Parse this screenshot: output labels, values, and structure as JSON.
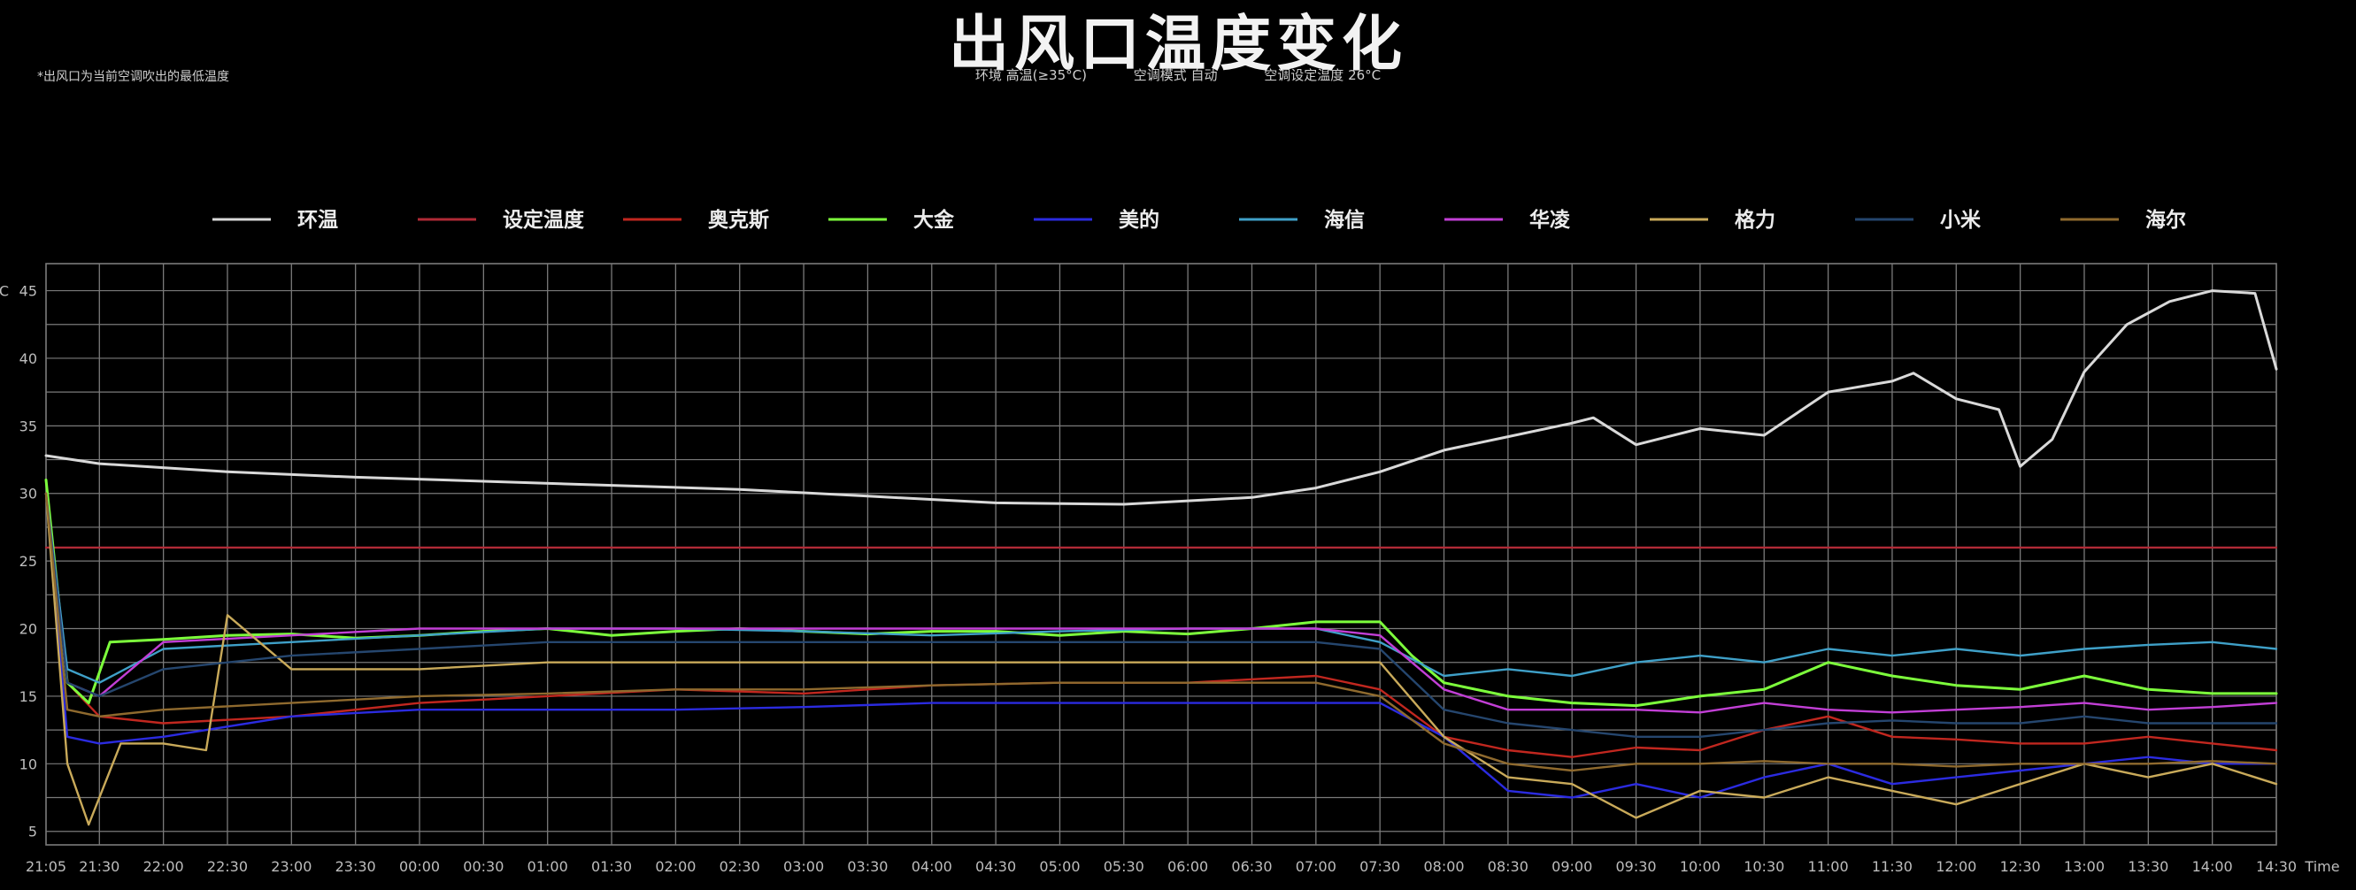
{
  "header": {
    "title": "出风口温度变化",
    "footnote": "*出风口为当前空调吹出的最低温度",
    "conditions": [
      "环境 高温(≥35°C)",
      "空调模式 自动",
      "空调设定温度 26°C"
    ]
  },
  "colors": {
    "background": "#000000",
    "grid": "#7a7a7a"
  },
  "chart_data": {
    "type": "line",
    "title": "出风口温度变化",
    "xlabel": "Time",
    "ylabel": "°C",
    "ylim": [
      4,
      47
    ],
    "xlim_minutes": [
      0,
      1045
    ],
    "grid": true,
    "legend_position": "top",
    "y_ticks": [
      5,
      10,
      15,
      20,
      25,
      30,
      35,
      40,
      45
    ],
    "x_ticks": [
      "21:05",
      "21:30",
      "22:00",
      "22:30",
      "23:00",
      "23:30",
      "00:00",
      "00:30",
      "01:00",
      "01:30",
      "02:00",
      "02:30",
      "03:00",
      "03:30",
      "04:00",
      "04:30",
      "05:00",
      "05:30",
      "06:00",
      "06:30",
      "07:00",
      "07:30",
      "08:00",
      "08:30",
      "09:00",
      "09:30",
      "10:00",
      "10:30",
      "11:00",
      "11:30",
      "12:00",
      "12:30",
      "13:00",
      "13:30",
      "14:00",
      "14:30"
    ],
    "series": [
      {
        "name": "环温",
        "color": "#d9d9d9",
        "x": [
          "21:05",
          "21:30",
          "22:30",
          "23:30",
          "00:30",
          "01:30",
          "02:30",
          "03:30",
          "04:30",
          "05:30",
          "06:30",
          "07:00",
          "07:30",
          "08:00",
          "08:30",
          "09:00",
          "09:10",
          "09:30",
          "10:00",
          "10:30",
          "11:00",
          "11:30",
          "11:40",
          "12:00",
          "12:20",
          "12:30",
          "12:45",
          "13:00",
          "13:20",
          "13:40",
          "14:00",
          "14:20",
          "14:30"
        ],
        "y": [
          32.8,
          32.2,
          31.6,
          31.2,
          30.9,
          30.6,
          30.3,
          29.8,
          29.3,
          29.2,
          29.7,
          30.4,
          31.6,
          33.2,
          34.2,
          35.2,
          35.6,
          33.6,
          34.8,
          34.3,
          37.5,
          38.3,
          38.9,
          37.0,
          36.2,
          32.0,
          34.0,
          39.0,
          42.5,
          44.2,
          45.0,
          44.8,
          39.2
        ]
      },
      {
        "name": "设定温度",
        "color": "#b02a36",
        "x": [
          "21:05",
          "14:30"
        ],
        "y": [
          26,
          26
        ]
      },
      {
        "name": "奥克斯",
        "color": "#c1271f",
        "x": [
          "21:05",
          "21:15",
          "21:30",
          "22:00",
          "23:00",
          "00:00",
          "01:00",
          "02:00",
          "03:00",
          "04:00",
          "05:00",
          "06:00",
          "07:00",
          "07:30",
          "08:00",
          "08:30",
          "09:00",
          "09:30",
          "10:00",
          "10:30",
          "11:00",
          "11:30",
          "12:00",
          "12:30",
          "13:00",
          "13:30",
          "14:00",
          "14:30"
        ],
        "y": [
          30,
          16,
          13.5,
          13,
          13.5,
          14.5,
          15,
          15.5,
          15.2,
          15.8,
          16,
          16,
          16.5,
          15.5,
          12,
          11,
          10.5,
          11.2,
          11.0,
          12.5,
          13.5,
          12,
          11.8,
          11.5,
          11.5,
          12,
          11.5,
          11
        ]
      },
      {
        "name": "大金",
        "color": "#7dff3c",
        "x": [
          "21:05",
          "21:15",
          "21:25",
          "21:35",
          "22:00",
          "22:30",
          "23:00",
          "23:30",
          "00:00",
          "00:30",
          "01:00",
          "01:30",
          "02:00",
          "02:30",
          "03:00",
          "03:30",
          "04:00",
          "04:30",
          "05:00",
          "05:30",
          "06:00",
          "06:30",
          "07:00",
          "07:30",
          "07:45",
          "08:00",
          "08:30",
          "09:00",
          "09:30",
          "10:00",
          "10:30",
          "11:00",
          "11:30",
          "12:00",
          "12:30",
          "13:00",
          "13:30",
          "14:00",
          "14:30"
        ],
        "y": [
          31,
          16,
          14.5,
          19,
          19.2,
          19.5,
          19.6,
          19.3,
          19.5,
          19.8,
          20,
          19.5,
          19.8,
          20,
          19.8,
          19.6,
          19.8,
          19.8,
          19.5,
          19.8,
          19.6,
          20,
          20.5,
          20.5,
          18,
          16,
          15,
          14.5,
          14.3,
          15,
          15.5,
          17.5,
          16.5,
          15.8,
          15.5,
          16.5,
          15.5,
          15.2,
          15.2
        ]
      },
      {
        "name": "美的",
        "color": "#2b2be0",
        "x": [
          "21:05",
          "21:15",
          "21:30",
          "22:00",
          "23:00",
          "00:00",
          "01:00",
          "02:00",
          "03:00",
          "04:00",
          "05:00",
          "06:00",
          "07:00",
          "07:30",
          "08:00",
          "08:30",
          "09:00",
          "09:30",
          "10:00",
          "10:30",
          "11:00",
          "11:30",
          "12:00",
          "12:30",
          "13:00",
          "13:30",
          "14:00",
          "14:30"
        ],
        "y": [
          30,
          12,
          11.5,
          12,
          13.5,
          14,
          14,
          14,
          14.2,
          14.5,
          14.5,
          14.5,
          14.5,
          14.5,
          12,
          8,
          7.5,
          8.5,
          7.5,
          9,
          10,
          8.5,
          9,
          9.5,
          10,
          10.5,
          10,
          10
        ]
      },
      {
        "name": "海信",
        "color": "#3fa0c8",
        "x": [
          "21:05",
          "21:15",
          "21:30",
          "22:00",
          "23:00",
          "00:00",
          "01:00",
          "02:00",
          "03:00",
          "04:00",
          "05:00",
          "06:00",
          "07:00",
          "07:30",
          "08:00",
          "08:30",
          "09:00",
          "09:30",
          "10:00",
          "10:30",
          "11:00",
          "11:30",
          "12:00",
          "12:30",
          "13:00",
          "13:30",
          "14:00",
          "14:30"
        ],
        "y": [
          30,
          17,
          16,
          18.5,
          19,
          19.5,
          20,
          20,
          19.8,
          19.5,
          19.8,
          20,
          20,
          19,
          16.5,
          17,
          16.5,
          17.5,
          18,
          17.5,
          18.5,
          18,
          18.5,
          18,
          18.5,
          18.8,
          19,
          18.5
        ]
      },
      {
        "name": "华凌",
        "color": "#c23fd6",
        "x": [
          "21:05",
          "21:15",
          "21:30",
          "22:00",
          "23:00",
          "00:00",
          "01:00",
          "02:00",
          "03:00",
          "04:00",
          "05:00",
          "06:00",
          "07:00",
          "07:30",
          "08:00",
          "08:30",
          "09:00",
          "09:30",
          "10:00",
          "10:30",
          "11:00",
          "11:30",
          "12:00",
          "12:30",
          "13:00",
          "13:30",
          "14:00",
          "14:30"
        ],
        "y": [
          30,
          16,
          15,
          19,
          19.5,
          20,
          20,
          20,
          20,
          20,
          20,
          20,
          20,
          19.5,
          15.5,
          14,
          14,
          14,
          13.8,
          14.5,
          14,
          13.8,
          14,
          14.2,
          14.5,
          14,
          14.2,
          14.5
        ]
      },
      {
        "name": "格力",
        "color": "#c9aa5a",
        "x": [
          "21:05",
          "21:15",
          "21:25",
          "21:40",
          "22:00",
          "22:20",
          "22:30",
          "23:00",
          "00:00",
          "01:00",
          "02:00",
          "03:00",
          "04:00",
          "05:00",
          "06:00",
          "07:00",
          "07:30",
          "08:00",
          "08:30",
          "09:00",
          "09:30",
          "10:00",
          "10:30",
          "11:00",
          "11:30",
          "12:00",
          "12:30",
          "13:00",
          "13:30",
          "14:00",
          "14:30"
        ],
        "y": [
          30,
          10,
          5.5,
          11.5,
          11.5,
          11,
          21,
          17,
          17,
          17.5,
          17.5,
          17.5,
          17.5,
          17.5,
          17.5,
          17.5,
          17.5,
          12,
          9,
          8.5,
          6,
          8,
          7.5,
          9,
          8,
          7,
          8.5,
          10,
          9,
          10,
          8.5
        ]
      },
      {
        "name": "小米",
        "color": "#25466e",
        "x": [
          "21:05",
          "21:15",
          "21:30",
          "22:00",
          "23:00",
          "00:00",
          "01:00",
          "02:00",
          "03:00",
          "04:00",
          "05:00",
          "06:00",
          "07:00",
          "07:30",
          "08:00",
          "08:30",
          "09:00",
          "09:30",
          "10:00",
          "10:30",
          "11:00",
          "11:30",
          "12:00",
          "12:30",
          "13:00",
          "13:30",
          "14:00",
          "14:30"
        ],
        "y": [
          30,
          16,
          15,
          17,
          18,
          18.5,
          19,
          19,
          19,
          19,
          19,
          19,
          19,
          18.5,
          14,
          13,
          12.5,
          12,
          12,
          12.5,
          13,
          13.2,
          13,
          13,
          13.5,
          13,
          13,
          13
        ]
      },
      {
        "name": "海尔",
        "color": "#8f6a2e",
        "x": [
          "21:05",
          "21:15",
          "21:30",
          "22:00",
          "23:00",
          "00:00",
          "01:00",
          "02:00",
          "03:00",
          "04:00",
          "05:00",
          "06:00",
          "07:00",
          "07:30",
          "08:00",
          "08:30",
          "09:00",
          "09:30",
          "10:00",
          "10:30",
          "11:00",
          "11:30",
          "12:00",
          "12:30",
          "13:00",
          "13:30",
          "14:00",
          "14:30"
        ],
        "y": [
          30,
          14,
          13.5,
          14,
          14.5,
          15,
          15.2,
          15.5,
          15.5,
          15.8,
          16,
          16,
          16,
          15,
          11.5,
          10,
          9.5,
          10,
          10,
          10.2,
          10,
          10,
          9.8,
          10,
          10,
          10,
          10.2,
          10
        ]
      }
    ]
  }
}
